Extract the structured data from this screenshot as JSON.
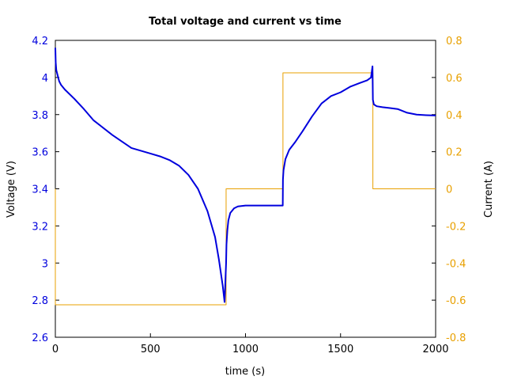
{
  "chart_data": {
    "type": "line",
    "title": "Total voltage and current vs time",
    "xlabel": "time (s)",
    "ylabel_left": "Voltage (V)",
    "ylabel_right": "Current (A)",
    "xlim": [
      0,
      2000
    ],
    "ylim_left": [
      2.6,
      4.2
    ],
    "ylim_right": [
      -0.8,
      0.8
    ],
    "x_ticks": [
      "0",
      "500",
      "1000",
      "1500",
      "2000"
    ],
    "y_left_ticks": [
      "2.6",
      "2.8",
      "3",
      "3.2",
      "3.4",
      "3.6",
      "3.8",
      "4",
      "4.2"
    ],
    "y_right_ticks": [
      "-0.8",
      "-0.6",
      "-0.4",
      "-0.2",
      "0",
      "0.2",
      "0.4",
      "0.6",
      "0.8"
    ],
    "grid": false,
    "colors": {
      "voltage": "#0000dd",
      "current": "#e8a000",
      "left_axis": "#0000dd",
      "right_axis": "#e8a000"
    },
    "series": [
      {
        "axis": "left",
        "color": "#0000dd",
        "x": [
          0,
          2,
          5,
          10,
          20,
          30,
          50,
          100,
          150,
          200,
          300,
          400,
          500,
          550,
          600,
          650,
          700,
          750,
          800,
          840,
          860,
          880,
          890,
          895,
          898,
          900,
          905,
          910,
          920,
          940,
          960,
          1000,
          1050,
          1100,
          1150,
          1196,
          1197,
          1200,
          1210,
          1230,
          1260,
          1300,
          1350,
          1400,
          1450,
          1500,
          1550,
          1600,
          1640,
          1660,
          1668,
          1670,
          1675,
          1690,
          1720,
          1760,
          1800,
          1850,
          1900,
          1950,
          2000
        ],
        "y": [
          4.16,
          4.08,
          4.04,
          4.02,
          3.98,
          3.96,
          3.935,
          3.885,
          3.83,
          3.77,
          3.69,
          3.62,
          3.59,
          3.575,
          3.555,
          3.525,
          3.475,
          3.4,
          3.28,
          3.14,
          3.02,
          2.88,
          2.79,
          2.92,
          3.0,
          3.1,
          3.18,
          3.23,
          3.27,
          3.295,
          3.305,
          3.31,
          3.31,
          3.31,
          3.31,
          3.31,
          3.45,
          3.5,
          3.56,
          3.61,
          3.65,
          3.71,
          3.79,
          3.86,
          3.9,
          3.92,
          3.95,
          3.97,
          3.985,
          4.0,
          4.06,
          3.88,
          3.855,
          3.845,
          3.84,
          3.835,
          3.83,
          3.81,
          3.8,
          3.797,
          3.795
        ]
      },
      {
        "axis": "right",
        "color": "#e8a000",
        "x": [
          0,
          0,
          898,
          898,
          1197,
          1197,
          1670,
          1670,
          2000
        ],
        "y": [
          0,
          -0.625,
          -0.625,
          0,
          0,
          0.625,
          0.625,
          0,
          0
        ]
      }
    ]
  }
}
